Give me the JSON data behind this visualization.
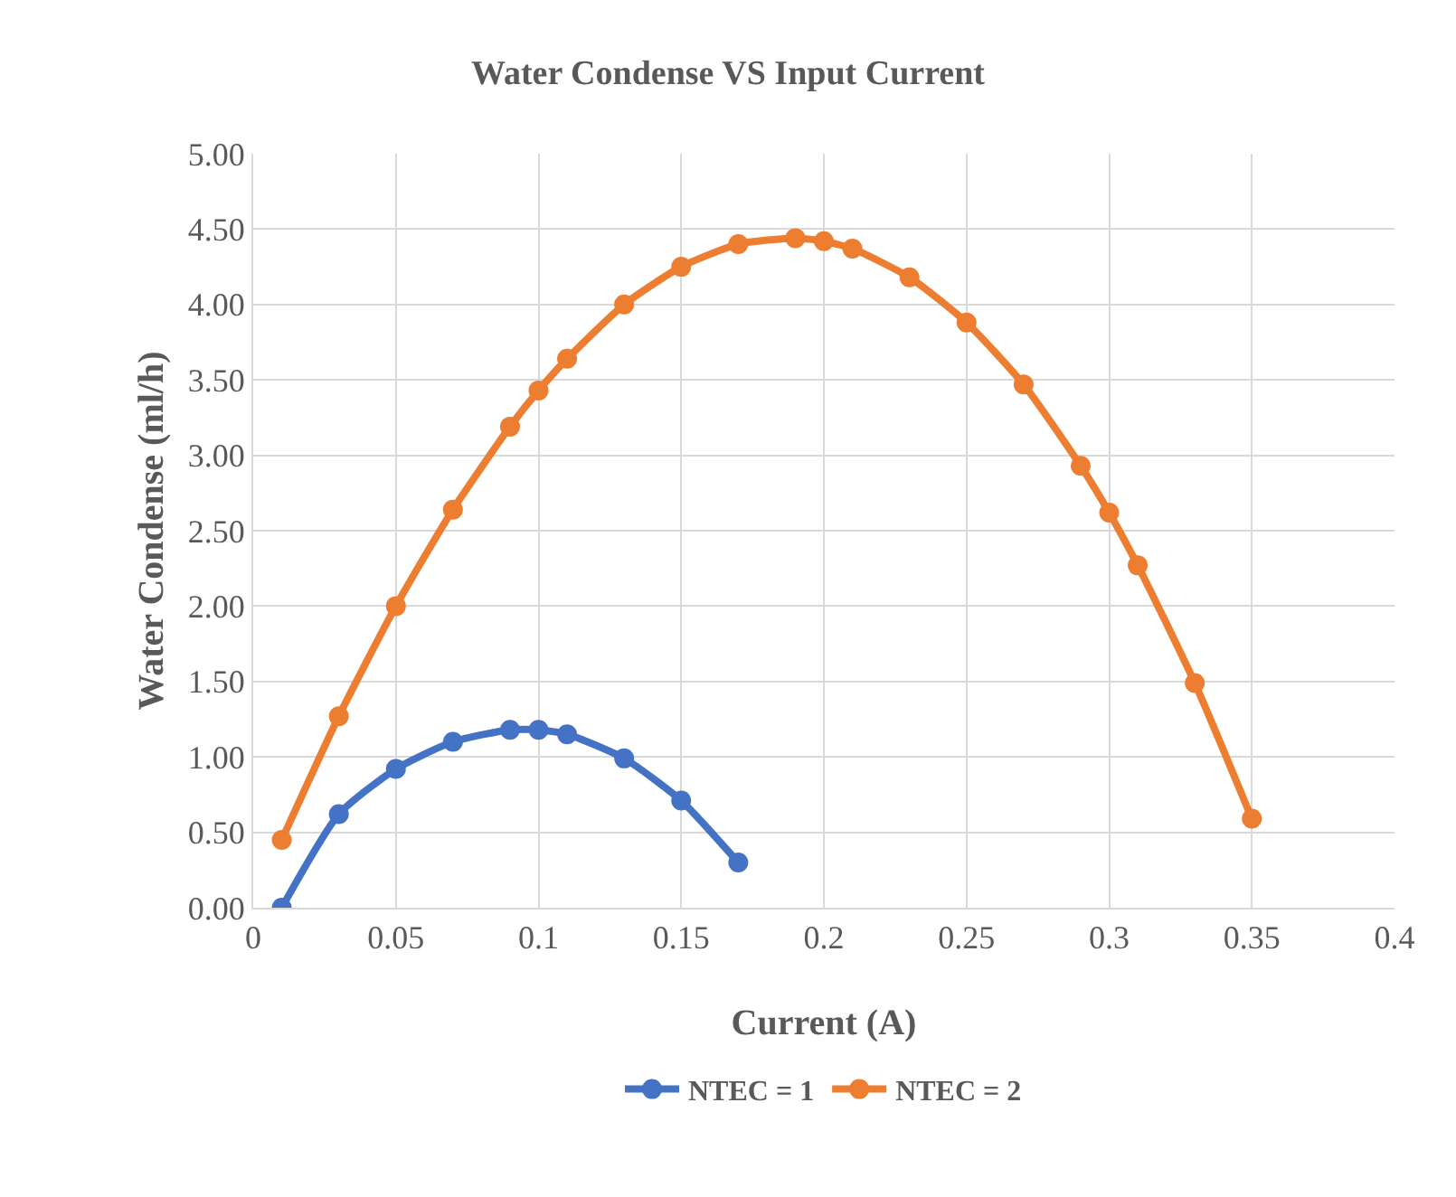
{
  "chart_data": {
    "type": "line",
    "title": "Water Condense VS Input Current",
    "xlabel": "Current (A)",
    "ylabel": "Water Condense (ml/h)",
    "series": [
      {
        "name": "NTEC = 1",
        "color": "#4472c4",
        "x": [
          0.01,
          0.03,
          0.05,
          0.07,
          0.09,
          0.1,
          0.11,
          0.13,
          0.15,
          0.17
        ],
        "values": [
          0,
          0.62,
          0.92,
          1.1,
          1.18,
          1.18,
          1.15,
          0.99,
          0.71,
          0.3
        ]
      },
      {
        "name": "NTEC = 2",
        "color": "#ed7d31",
        "x": [
          0.01,
          0.03,
          0.05,
          0.07,
          0.09,
          0.1,
          0.11,
          0.13,
          0.15,
          0.17,
          0.19,
          0.2,
          0.21,
          0.23,
          0.25,
          0.27,
          0.29,
          0.3,
          0.31,
          0.33,
          0.35
        ],
        "values": [
          0.45,
          1.27,
          2.0,
          2.64,
          3.19,
          3.43,
          3.64,
          4.0,
          4.25,
          4.4,
          4.44,
          4.42,
          4.37,
          4.18,
          3.88,
          3.47,
          2.93,
          2.62,
          2.27,
          1.49,
          0.59
        ]
      }
    ],
    "xlim": [
      0,
      0.4
    ],
    "xticks": [
      0,
      0.05,
      0.1,
      0.15,
      0.2,
      0.25,
      0.3,
      0.35,
      0.4
    ],
    "ylim": [
      0,
      5
    ],
    "yticks": [
      {
        "value": 0,
        "label": "0.00"
      },
      {
        "value": 0.5,
        "label": "0.50"
      },
      {
        "value": 1,
        "label": "1.00"
      },
      {
        "value": 1.5,
        "label": "1.50"
      },
      {
        "value": 2,
        "label": "2.00"
      },
      {
        "value": 2.5,
        "label": "2.50"
      },
      {
        "value": 3,
        "label": "3.00"
      },
      {
        "value": 3.5,
        "label": "3.50"
      },
      {
        "value": 4,
        "label": "4.00"
      },
      {
        "value": 4.5,
        "label": "4.50"
      },
      {
        "value": 5,
        "label": "5.00"
      }
    ],
    "grid": true,
    "legend": "bottom",
    "marker": "circle",
    "line_style": "solid"
  }
}
